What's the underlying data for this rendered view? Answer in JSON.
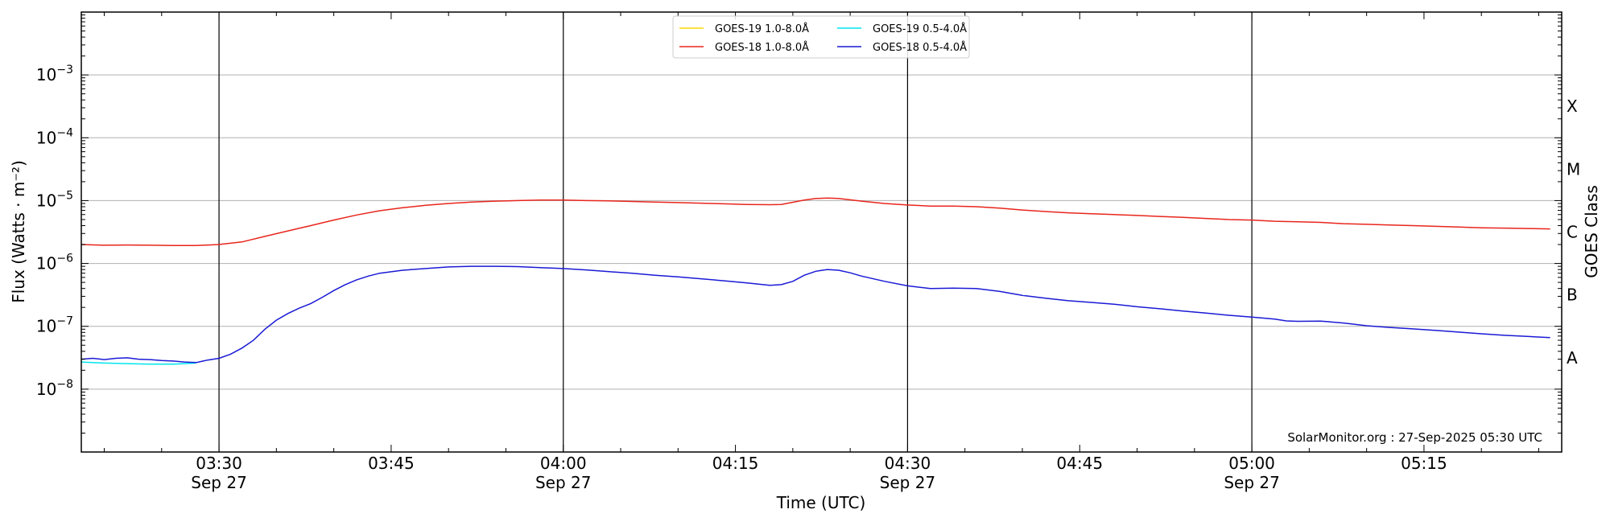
{
  "chart_data": {
    "type": "line",
    "title": "",
    "xlabel": "Time (UTC)",
    "ylabel": "Flux (Watts · m⁻²)",
    "y2label": "GOES Class",
    "y_scale": "log",
    "ylim": [
      1e-09,
      0.01
    ],
    "xlim": [
      "03:18",
      "05:27"
    ],
    "x_ticks": [
      {
        "time": "03:30",
        "label": "03:30",
        "date": "Sep 27"
      },
      {
        "time": "03:45",
        "label": "03:45",
        "date": ""
      },
      {
        "time": "04:00",
        "label": "04:00",
        "date": "Sep 27"
      },
      {
        "time": "04:15",
        "label": "04:15",
        "date": ""
      },
      {
        "time": "04:30",
        "label": "04:30",
        "date": "Sep 27"
      },
      {
        "time": "04:45",
        "label": "04:45",
        "date": ""
      },
      {
        "time": "05:00",
        "label": "05:00",
        "date": "Sep 27"
      },
      {
        "time": "05:15",
        "label": "05:15",
        "date": ""
      }
    ],
    "y_ticks": [
      {
        "value": 1e-08,
        "base": "10",
        "exp": "−8"
      },
      {
        "value": 1e-07,
        "base": "10",
        "exp": "−7"
      },
      {
        "value": 1e-06,
        "base": "10",
        "exp": "−6"
      },
      {
        "value": 1e-05,
        "base": "10",
        "exp": "−5"
      },
      {
        "value": 0.0001,
        "base": "10",
        "exp": "−4"
      },
      {
        "value": 0.001,
        "base": "10",
        "exp": "−3"
      }
    ],
    "class_labels": [
      {
        "label": "A",
        "center": 3.16e-08
      },
      {
        "label": "B",
        "center": 3.16e-07
      },
      {
        "label": "C",
        "center": 3.16e-06
      },
      {
        "label": "M",
        "center": 3.16e-05
      },
      {
        "label": "X",
        "center": 0.000316
      }
    ],
    "grid": true,
    "legend_position": "top-center",
    "credit": "SolarMonitor.org : 27-Sep-2025 05:30 UTC",
    "series": [
      {
        "name": "GOES-19 1.0-8.0Å",
        "color": "#ffd700",
        "points": []
      },
      {
        "name": "GOES-19 0.5-4.0Å",
        "color": "#00e5ee",
        "points": [
          [
            "03:18",
            2.7e-08
          ],
          [
            "03:20",
            2.6e-08
          ],
          [
            "03:22",
            2.55e-08
          ],
          [
            "03:24",
            2.5e-08
          ],
          [
            "03:26",
            2.5e-08
          ],
          [
            "03:27",
            2.55e-08
          ],
          [
            "03:28",
            2.6e-08
          ]
        ]
      },
      {
        "name": "GOES-18 1.0-8.0Å",
        "color": "#e8261c",
        "points": [
          [
            "03:18",
            2e-06
          ],
          [
            "03:20",
            1.95e-06
          ],
          [
            "03:22",
            1.97e-06
          ],
          [
            "03:24",
            1.95e-06
          ],
          [
            "03:26",
            1.93e-06
          ],
          [
            "03:28",
            1.93e-06
          ],
          [
            "03:30",
            2e-06
          ],
          [
            "03:32",
            2.2e-06
          ],
          [
            "03:34",
            2.7e-06
          ],
          [
            "03:36",
            3.3e-06
          ],
          [
            "03:38",
            4e-06
          ],
          [
            "03:40",
            4.9e-06
          ],
          [
            "03:42",
            5.9e-06
          ],
          [
            "03:44",
            6.9e-06
          ],
          [
            "03:46",
            7.7e-06
          ],
          [
            "03:48",
            8.4e-06
          ],
          [
            "03:50",
            9e-06
          ],
          [
            "03:52",
            9.5e-06
          ],
          [
            "03:54",
            9.8e-06
          ],
          [
            "03:56",
            1e-05
          ],
          [
            "03:58",
            1.02e-05
          ],
          [
            "04:00",
            1.02e-05
          ],
          [
            "04:02",
            1e-05
          ],
          [
            "04:04",
            9.9e-06
          ],
          [
            "04:06",
            9.7e-06
          ],
          [
            "04:08",
            9.5e-06
          ],
          [
            "04:10",
            9.3e-06
          ],
          [
            "04:12",
            9.1e-06
          ],
          [
            "04:14",
            8.9e-06
          ],
          [
            "04:16",
            8.7e-06
          ],
          [
            "04:18",
            8.6e-06
          ],
          [
            "04:19",
            8.7e-06
          ],
          [
            "04:20",
            9.4e-06
          ],
          [
            "04:21",
            1.02e-05
          ],
          [
            "04:22",
            1.08e-05
          ],
          [
            "04:23",
            1.1e-05
          ],
          [
            "04:24",
            1.08e-05
          ],
          [
            "04:26",
            9.8e-06
          ],
          [
            "04:28",
            9e-06
          ],
          [
            "04:30",
            8.5e-06
          ],
          [
            "04:32",
            8.2e-06
          ],
          [
            "04:34",
            8.2e-06
          ],
          [
            "04:36",
            8e-06
          ],
          [
            "04:38",
            7.6e-06
          ],
          [
            "04:40",
            7.1e-06
          ],
          [
            "04:42",
            6.7e-06
          ],
          [
            "04:44",
            6.4e-06
          ],
          [
            "04:46",
            6.2e-06
          ],
          [
            "04:48",
            6e-06
          ],
          [
            "04:50",
            5.8e-06
          ],
          [
            "04:52",
            5.6e-06
          ],
          [
            "04:54",
            5.4e-06
          ],
          [
            "04:56",
            5.2e-06
          ],
          [
            "04:58",
            5e-06
          ],
          [
            "05:00",
            4.9e-06
          ],
          [
            "05:02",
            4.7e-06
          ],
          [
            "05:04",
            4.6e-06
          ],
          [
            "05:06",
            4.5e-06
          ],
          [
            "05:08",
            4.3e-06
          ],
          [
            "05:10",
            4.2e-06
          ],
          [
            "05:12",
            4.1e-06
          ],
          [
            "05:14",
            4e-06
          ],
          [
            "05:16",
            3.9e-06
          ],
          [
            "05:18",
            3.8e-06
          ],
          [
            "05:20",
            3.7e-06
          ],
          [
            "05:22",
            3.65e-06
          ],
          [
            "05:24",
            3.6e-06
          ],
          [
            "05:26",
            3.55e-06
          ]
        ]
      },
      {
        "name": "GOES-18 0.5-4.0Å",
        "color": "#1a1ad6",
        "points": [
          [
            "03:18",
            3e-08
          ],
          [
            "03:19",
            3.1e-08
          ],
          [
            "03:20",
            2.95e-08
          ],
          [
            "03:21",
            3.1e-08
          ],
          [
            "03:22",
            3.15e-08
          ],
          [
            "03:23",
            3e-08
          ],
          [
            "03:24",
            2.95e-08
          ],
          [
            "03:25",
            2.85e-08
          ],
          [
            "03:26",
            2.8e-08
          ],
          [
            "03:27",
            2.7e-08
          ],
          [
            "03:28",
            2.65e-08
          ],
          [
            "03:29",
            2.9e-08
          ],
          [
            "03:30",
            3.1e-08
          ],
          [
            "03:31",
            3.6e-08
          ],
          [
            "03:32",
            4.5e-08
          ],
          [
            "03:33",
            6e-08
          ],
          [
            "03:34",
            9e-08
          ],
          [
            "03:35",
            1.25e-07
          ],
          [
            "03:36",
            1.6e-07
          ],
          [
            "03:37",
            1.95e-07
          ],
          [
            "03:38",
            2.3e-07
          ],
          [
            "03:39",
            2.9e-07
          ],
          [
            "03:40",
            3.7e-07
          ],
          [
            "03:41",
            4.6e-07
          ],
          [
            "03:42",
            5.5e-07
          ],
          [
            "03:43",
            6.3e-07
          ],
          [
            "03:44",
            7e-07
          ],
          [
            "03:46",
            7.8e-07
          ],
          [
            "03:48",
            8.3e-07
          ],
          [
            "03:50",
            8.8e-07
          ],
          [
            "03:52",
            9e-07
          ],
          [
            "03:54",
            9e-07
          ],
          [
            "03:56",
            8.9e-07
          ],
          [
            "03:58",
            8.6e-07
          ],
          [
            "04:00",
            8.3e-07
          ],
          [
            "04:02",
            7.9e-07
          ],
          [
            "04:04",
            7.4e-07
          ],
          [
            "04:06",
            7e-07
          ],
          [
            "04:08",
            6.5e-07
          ],
          [
            "04:10",
            6.1e-07
          ],
          [
            "04:12",
            5.7e-07
          ],
          [
            "04:14",
            5.3e-07
          ],
          [
            "04:16",
            4.9e-07
          ],
          [
            "04:18",
            4.5e-07
          ],
          [
            "04:19",
            4.6e-07
          ],
          [
            "04:20",
            5.2e-07
          ],
          [
            "04:21",
            6.5e-07
          ],
          [
            "04:22",
            7.5e-07
          ],
          [
            "04:23",
            8e-07
          ],
          [
            "04:24",
            7.8e-07
          ],
          [
            "04:25",
            7.1e-07
          ],
          [
            "04:26",
            6.3e-07
          ],
          [
            "04:28",
            5.2e-07
          ],
          [
            "04:30",
            4.4e-07
          ],
          [
            "04:32",
            4e-07
          ],
          [
            "04:34",
            4.05e-07
          ],
          [
            "04:36",
            4e-07
          ],
          [
            "04:38",
            3.6e-07
          ],
          [
            "04:40",
            3.1e-07
          ],
          [
            "04:42",
            2.8e-07
          ],
          [
            "04:44",
            2.55e-07
          ],
          [
            "04:46",
            2.4e-07
          ],
          [
            "04:48",
            2.25e-07
          ],
          [
            "04:50",
            2.05e-07
          ],
          [
            "04:52",
            1.9e-07
          ],
          [
            "04:54",
            1.75e-07
          ],
          [
            "04:56",
            1.62e-07
          ],
          [
            "04:58",
            1.5e-07
          ],
          [
            "05:00",
            1.4e-07
          ],
          [
            "05:02",
            1.3e-07
          ],
          [
            "05:03",
            1.22e-07
          ],
          [
            "05:04",
            1.2e-07
          ],
          [
            "05:06",
            1.21e-07
          ],
          [
            "05:08",
            1.13e-07
          ],
          [
            "05:10",
            1.02e-07
          ],
          [
            "05:12",
            9.6e-08
          ],
          [
            "05:14",
            9.1e-08
          ],
          [
            "05:16",
            8.6e-08
          ],
          [
            "05:18",
            8.1e-08
          ],
          [
            "05:20",
            7.6e-08
          ],
          [
            "05:22",
            7.2e-08
          ],
          [
            "05:24",
            6.9e-08
          ],
          [
            "05:26",
            6.6e-08
          ]
        ]
      }
    ]
  }
}
